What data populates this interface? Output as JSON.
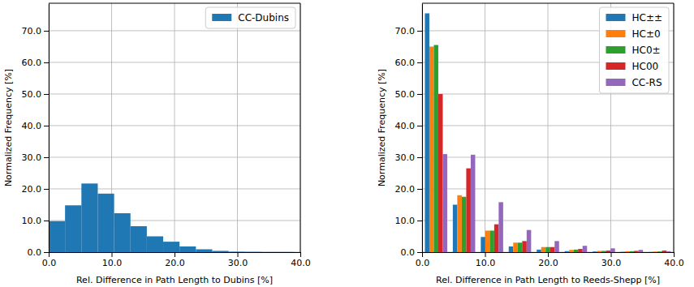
{
  "chart_data": [
    {
      "type": "histogram",
      "x_label": "Rel. Difference in Path Length to Dubins [%]",
      "y_label": "Normalized Frequency [%]",
      "bins": [
        0,
        2.6,
        5.2,
        7.8,
        10.4,
        13,
        15.6,
        18.2,
        20.8,
        23.4,
        26,
        28.6,
        31.2,
        33.8,
        36.4,
        39
      ],
      "series": [
        {
          "name": "CC-Dubins",
          "color": "#1f77b4",
          "values": [
            9.8,
            14.8,
            21.7,
            18.5,
            12.3,
            8.2,
            5.0,
            3.3,
            1.8,
            0.9,
            0.4,
            0.15,
            0.1,
            0.05,
            0.05
          ]
        }
      ],
      "xlim": [
        0,
        40
      ],
      "xticks": [
        {
          "value": 0,
          "label": "0.0"
        },
        {
          "value": 10,
          "label": "10.0"
        },
        {
          "value": 20,
          "label": "20.0"
        },
        {
          "value": 30,
          "label": "30.0"
        },
        {
          "value": 40,
          "label": "40.0"
        }
      ],
      "ylim": [
        0,
        78.7
      ],
      "yticks": [
        {
          "value": 0,
          "label": "0.0"
        },
        {
          "value": 10,
          "label": "10.0"
        },
        {
          "value": 20,
          "label": "20.0"
        },
        {
          "value": 30,
          "label": "30.0"
        },
        {
          "value": 40,
          "label": "40.0"
        },
        {
          "value": 50,
          "label": "50.0"
        },
        {
          "value": 60,
          "label": "60.0"
        },
        {
          "value": 70,
          "label": "70.0"
        }
      ],
      "grid": true,
      "legend": "upper right"
    },
    {
      "type": "histogram",
      "x_label": "Rel. Difference in Path Length to Reeds-Shepp [%]",
      "y_label": "Normalized Frequency [%]",
      "bins": [
        0,
        4.44,
        8.89,
        13.33,
        17.78,
        22.22,
        26.67,
        31.11,
        35.56,
        40
      ],
      "series": [
        {
          "name": "HC±±",
          "color": "#1f77b4",
          "values": [
            75.5,
            15.0,
            4.8,
            1.8,
            0.8,
            0.3,
            0.2,
            0.1,
            0.05
          ]
        },
        {
          "name": "HC±0",
          "color": "#ff7f0e",
          "values": [
            65.0,
            18.0,
            6.8,
            3.0,
            1.6,
            0.7,
            0.4,
            0.3,
            0.2
          ]
        },
        {
          "name": "HC0±",
          "color": "#2ca02c",
          "values": [
            65.5,
            17.5,
            6.8,
            3.0,
            1.6,
            0.8,
            0.4,
            0.3,
            0.2
          ]
        },
        {
          "name": "HC00",
          "color": "#d62728",
          "values": [
            50.0,
            26.5,
            8.8,
            3.5,
            1.6,
            1.0,
            0.5,
            0.4,
            0.5
          ]
        },
        {
          "name": "CC-RS",
          "color": "#9467bd",
          "values": [
            31.0,
            30.8,
            15.8,
            7.0,
            3.5,
            2.0,
            1.2,
            0.7,
            0.3
          ]
        }
      ],
      "xlim": [
        0,
        40
      ],
      "xticks": [
        {
          "value": 0,
          "label": "0.0"
        },
        {
          "value": 10,
          "label": "10.0"
        },
        {
          "value": 20,
          "label": "20.0"
        },
        {
          "value": 30,
          "label": "30.0"
        },
        {
          "value": 40,
          "label": "40.0"
        }
      ],
      "ylim": [
        0,
        78.7
      ],
      "yticks": [
        {
          "value": 0,
          "label": "0.0"
        },
        {
          "value": 10,
          "label": "10.0"
        },
        {
          "value": 20,
          "label": "20.0"
        },
        {
          "value": 30,
          "label": "30.0"
        },
        {
          "value": 40,
          "label": "40.0"
        },
        {
          "value": 50,
          "label": "50.0"
        },
        {
          "value": 60,
          "label": "60.0"
        },
        {
          "value": 70,
          "label": "70.0"
        }
      ],
      "grid": true,
      "legend": "upper right"
    }
  ]
}
